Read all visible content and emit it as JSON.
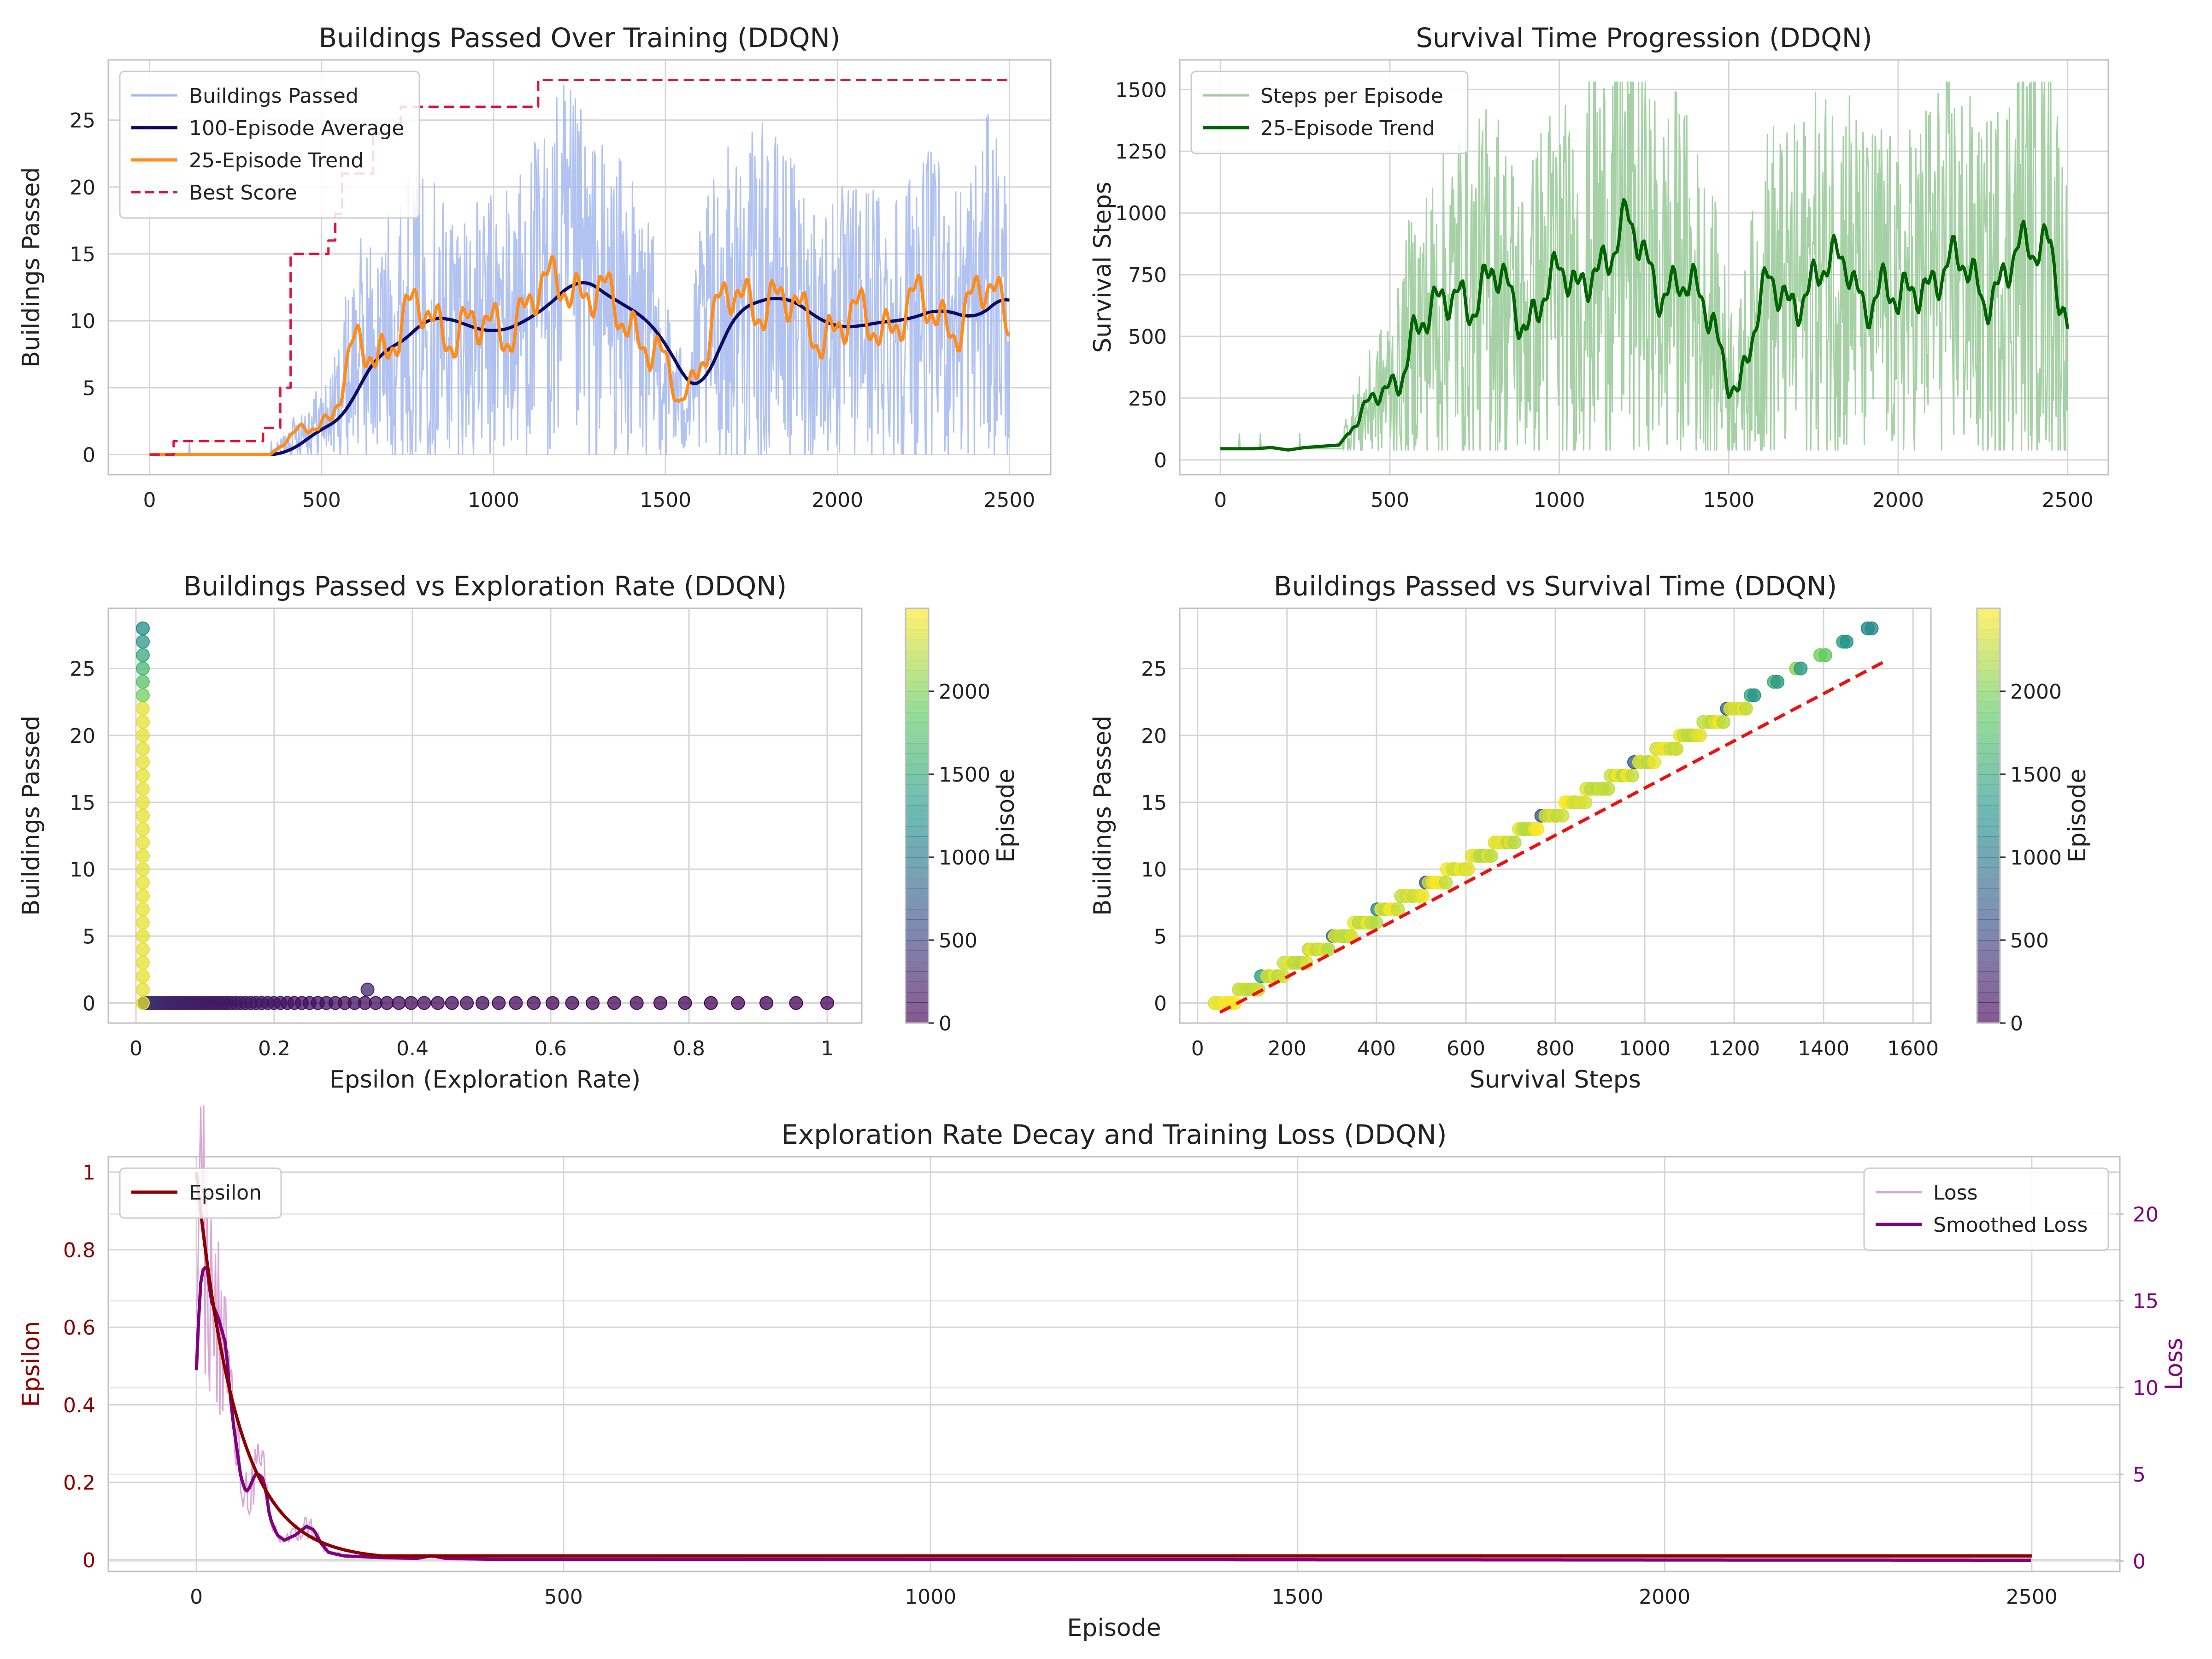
{
  "chart_data": [
    {
      "id": "buildings",
      "type": "line",
      "title": "Buildings Passed Over Training (DDQN)",
      "xlabel": "",
      "ylabel": "Buildings Passed",
      "xlim": [
        -120,
        2620
      ],
      "ylim": [
        -1.5,
        29.5
      ],
      "xticks": [
        0,
        500,
        1000,
        1500,
        2000,
        2500
      ],
      "yticks": [
        0,
        5,
        10,
        15,
        20,
        25
      ],
      "grid": true,
      "legend_position": "top-left",
      "colors": {
        "raw": "#a4b8ee",
        "avg": "#0c0c66",
        "trend": "#ff8c1a",
        "best": "#dc143c"
      },
      "series": [
        {
          "name": "Buildings Passed",
          "style": "raw"
        },
        {
          "name": "100-Episode Average",
          "style": "avg"
        },
        {
          "name": "25-Episode Trend",
          "style": "trend"
        },
        {
          "name": "Best Score",
          "style": "best"
        }
      ],
      "trend_points": [
        [
          0,
          0
        ],
        [
          350,
          0
        ],
        [
          400,
          1
        ],
        [
          450,
          2
        ],
        [
          500,
          2.5
        ],
        [
          530,
          3
        ],
        [
          560,
          5
        ],
        [
          590,
          7
        ],
        [
          620,
          8
        ],
        [
          660,
          7.5
        ],
        [
          700,
          9
        ],
        [
          750,
          10
        ],
        [
          800,
          10.5
        ],
        [
          850,
          9.8
        ],
        [
          900,
          9.5
        ],
        [
          950,
          9
        ],
        [
          1000,
          9.5
        ],
        [
          1050,
          10
        ],
        [
          1100,
          11
        ],
        [
          1150,
          12
        ],
        [
          1200,
          13.5
        ],
        [
          1250,
          12.5
        ],
        [
          1300,
          11.5
        ],
        [
          1350,
          11
        ],
        [
          1400,
          10
        ],
        [
          1450,
          8.5
        ],
        [
          1500,
          6
        ],
        [
          1540,
          4
        ],
        [
          1570,
          5
        ],
        [
          1600,
          8
        ],
        [
          1650,
          10.5
        ],
        [
          1700,
          11.5
        ],
        [
          1750,
          11.5
        ],
        [
          1800,
          12
        ],
        [
          1850,
          11
        ],
        [
          1900,
          10
        ],
        [
          1950,
          9.5
        ],
        [
          2000,
          9.5
        ],
        [
          2050,
          9.8
        ],
        [
          2100,
          10
        ],
        [
          2150,
          10
        ],
        [
          2200,
          10.5
        ],
        [
          2250,
          11
        ],
        [
          2300,
          10.5
        ],
        [
          2350,
          10
        ],
        [
          2400,
          11
        ],
        [
          2450,
          12.5
        ],
        [
          2500,
          10.5
        ]
      ],
      "best_score": [
        [
          0,
          0
        ],
        [
          70,
          0
        ],
        [
          70,
          1
        ],
        [
          330,
          1
        ],
        [
          330,
          2
        ],
        [
          380,
          2
        ],
        [
          380,
          5
        ],
        [
          410,
          5
        ],
        [
          410,
          15
        ],
        [
          520,
          15
        ],
        [
          520,
          16
        ],
        [
          540,
          16
        ],
        [
          540,
          18
        ],
        [
          560,
          18
        ],
        [
          560,
          21
        ],
        [
          650,
          21
        ],
        [
          650,
          24
        ],
        [
          730,
          24
        ],
        [
          730,
          26
        ],
        [
          1130,
          26
        ],
        [
          1130,
          28
        ],
        [
          2500,
          28
        ]
      ]
    },
    {
      "id": "survival",
      "type": "line",
      "title": "Survival Time Progression (DDQN)",
      "xlabel": "",
      "ylabel": "Survival Steps",
      "xlim": [
        -120,
        2620
      ],
      "ylim": [
        -60,
        1620
      ],
      "xticks": [
        0,
        500,
        1000,
        1500,
        2000,
        2500
      ],
      "yticks": [
        0,
        250,
        500,
        750,
        1000,
        1250,
        1500
      ],
      "grid": true,
      "legend_position": "top-left",
      "colors": {
        "raw": "#9bcc9b",
        "trend": "#006400"
      },
      "series": [
        {
          "name": "Steps per Episode",
          "style": "raw"
        },
        {
          "name": "25-Episode Trend",
          "style": "trend"
        }
      ],
      "trend_points": [
        [
          0,
          45
        ],
        [
          100,
          45
        ],
        [
          150,
          50
        ],
        [
          200,
          40
        ],
        [
          250,
          50
        ],
        [
          300,
          55
        ],
        [
          350,
          60
        ],
        [
          400,
          150
        ],
        [
          430,
          200
        ],
        [
          460,
          250
        ],
        [
          500,
          300
        ],
        [
          530,
          350
        ],
        [
          560,
          500
        ],
        [
          600,
          550
        ],
        [
          650,
          600
        ],
        [
          700,
          700
        ],
        [
          750,
          650
        ],
        [
          800,
          750
        ],
        [
          850,
          650
        ],
        [
          900,
          550
        ],
        [
          950,
          700
        ],
        [
          1000,
          750
        ],
        [
          1050,
          650
        ],
        [
          1100,
          800
        ],
        [
          1150,
          850
        ],
        [
          1200,
          950
        ],
        [
          1250,
          800
        ],
        [
          1300,
          700
        ],
        [
          1350,
          750
        ],
        [
          1400,
          650
        ],
        [
          1450,
          550
        ],
        [
          1500,
          350
        ],
        [
          1530,
          300
        ],
        [
          1570,
          500
        ],
        [
          1620,
          700
        ],
        [
          1680,
          650
        ],
        [
          1720,
          700
        ],
        [
          1780,
          750
        ],
        [
          1850,
          800
        ],
        [
          1900,
          650
        ],
        [
          1950,
          700
        ],
        [
          2000,
          600
        ],
        [
          2050,
          700
        ],
        [
          2100,
          750
        ],
        [
          2150,
          800
        ],
        [
          2200,
          750
        ],
        [
          2250,
          650
        ],
        [
          2300,
          750
        ],
        [
          2350,
          850
        ],
        [
          2400,
          800
        ],
        [
          2450,
          900
        ],
        [
          2500,
          550
        ]
      ]
    },
    {
      "id": "explore-scatter",
      "type": "scatter",
      "title": "Buildings Passed vs Exploration Rate (DDQN)",
      "xlabel": "Epsilon (Exploration Rate)",
      "ylabel": "Buildings Passed",
      "xlim": [
        -0.04,
        1.05
      ],
      "ylim": [
        -1.5,
        29.5
      ],
      "xticks": [
        0.0,
        0.2,
        0.4,
        0.6,
        0.8,
        1.0
      ],
      "yticks": [
        0,
        5,
        10,
        15,
        20,
        25
      ],
      "grid": true,
      "colorbar": {
        "label": "Episode",
        "ticks": [
          0,
          500,
          1000,
          1500,
          2000
        ],
        "max": 2500,
        "colormap": "viridis"
      },
      "points_note_min_eps": 0.01
    },
    {
      "id": "survival-scatter",
      "type": "scatter",
      "title": "Buildings Passed vs Survival Time (DDQN)",
      "xlabel": "Survival Steps",
      "ylabel": "Buildings Passed",
      "xlim": [
        -40,
        1640
      ],
      "ylim": [
        -1.5,
        29.5
      ],
      "xticks": [
        0,
        200,
        400,
        600,
        800,
        1000,
        1200,
        1400,
        1600
      ],
      "yticks": [
        0,
        5,
        10,
        15,
        20,
        25
      ],
      "grid": true,
      "colorbar": {
        "label": "Episode",
        "ticks": [
          0,
          500,
          1000,
          1500,
          2000
        ],
        "max": 2500,
        "colormap": "viridis"
      },
      "fit_line": {
        "x": [
          50,
          1535
        ],
        "y": [
          -0.7,
          25.5
        ],
        "color": "#ee1111"
      }
    },
    {
      "id": "epsilon-loss",
      "type": "line",
      "title": "Exploration Rate Decay and Training Loss (DDQN)",
      "xlabel": "Episode",
      "ylabel": "Epsilon",
      "ylabel_right": "Loss",
      "xlim": [
        -120,
        2620
      ],
      "ylim": [
        -0.03,
        1.04
      ],
      "ylim_right": [
        -0.6,
        23.3
      ],
      "xticks": [
        0,
        500,
        1000,
        1500,
        2000,
        2500
      ],
      "yticks": [
        0.0,
        0.2,
        0.4,
        0.6,
        0.8,
        1.0
      ],
      "yticks_right": [
        0,
        5,
        10,
        15,
        20
      ],
      "grid": true,
      "colors": {
        "epsilon": "#8b0000",
        "loss": "#d9a8d6",
        "smooth": "#800080"
      },
      "series": [
        {
          "name": "Epsilon",
          "style": "epsilon"
        },
        {
          "name": "Loss",
          "style": "loss"
        },
        {
          "name": "Smoothed Loss",
          "style": "smooth"
        }
      ],
      "smoothed_loss": [
        [
          0,
          11
        ],
        [
          5,
          15.8
        ],
        [
          10,
          17
        ],
        [
          15,
          16.8
        ],
        [
          20,
          15
        ],
        [
          30,
          14
        ],
        [
          40,
          12.5
        ],
        [
          45,
          10
        ],
        [
          50,
          8
        ],
        [
          55,
          6.5
        ],
        [
          60,
          5
        ],
        [
          65,
          4.2
        ],
        [
          70,
          4
        ],
        [
          75,
          4.5
        ],
        [
          80,
          5
        ],
        [
          85,
          5
        ],
        [
          90,
          4.8
        ],
        [
          95,
          4
        ],
        [
          100,
          2.5
        ],
        [
          110,
          1.5
        ],
        [
          120,
          1.2
        ],
        [
          135,
          1.5
        ],
        [
          150,
          2
        ],
        [
          160,
          1.8
        ],
        [
          170,
          1
        ],
        [
          180,
          0.5
        ],
        [
          200,
          0.3
        ],
        [
          250,
          0.2
        ],
        [
          300,
          0.15
        ],
        [
          320,
          0.3
        ],
        [
          340,
          0.15
        ],
        [
          400,
          0.1
        ],
        [
          2500,
          0.05
        ]
      ]
    }
  ]
}
